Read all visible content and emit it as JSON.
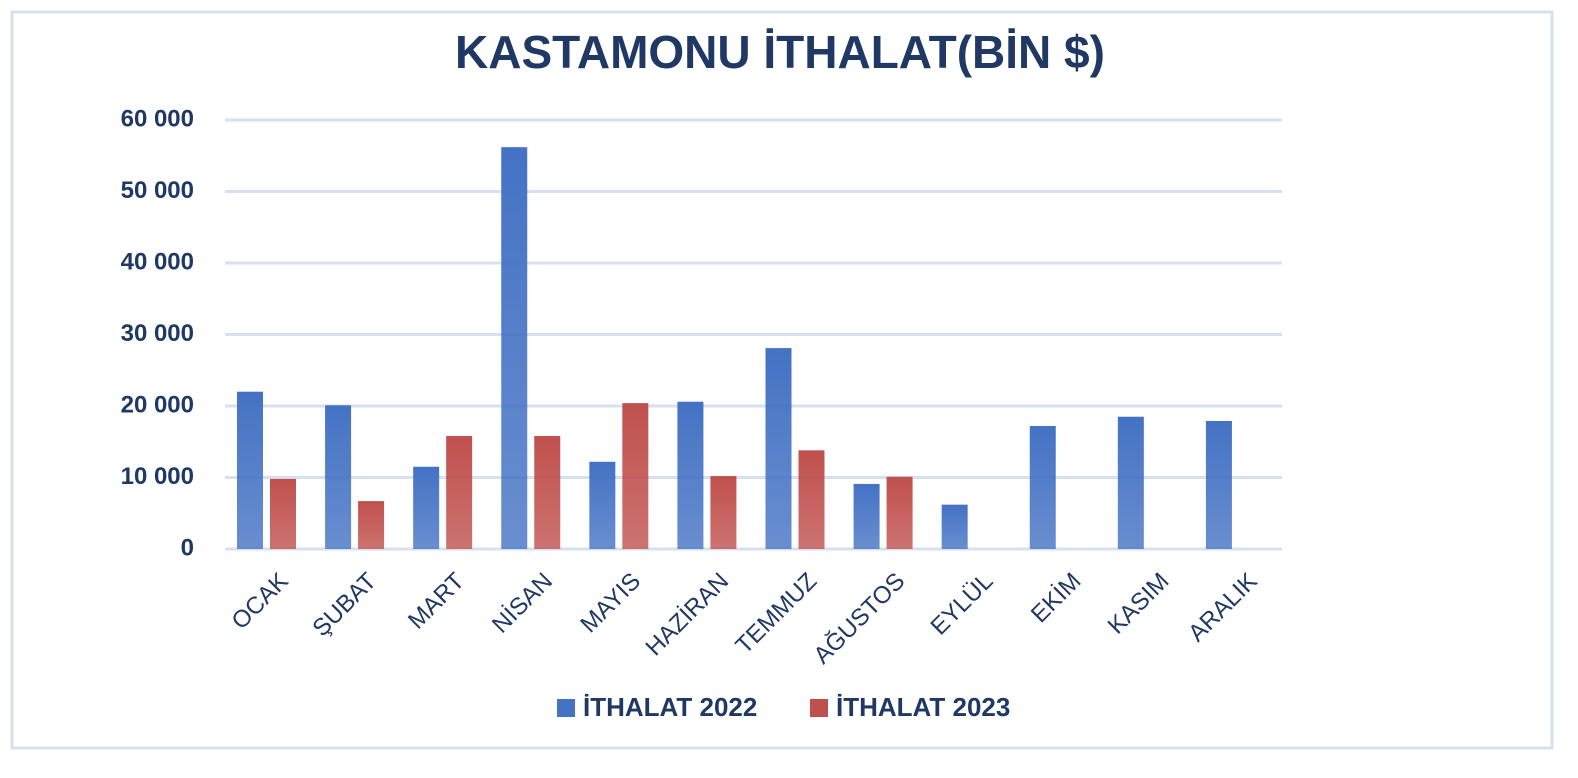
{
  "chart_data": {
    "type": "bar",
    "title": "KASTAMONU İTHALAT(BİN $)",
    "categories": [
      "OCAK",
      "ŞUBAT",
      "MART",
      "NİSAN",
      "MAYIS",
      "HAZİRAN",
      "TEMMUZ",
      "AĞUSTOS",
      "EYLÜL",
      "EKİM",
      "KASIM",
      "ARALIK"
    ],
    "series": [
      {
        "name": "İTHALAT 2022",
        "color": "#4472c4",
        "values": [
          22000,
          20100,
          11500,
          56200,
          12200,
          20600,
          28100,
          9100,
          6200,
          17200,
          18500,
          17900
        ]
      },
      {
        "name": "İTHALAT 2023",
        "color": "#c0504d",
        "values": [
          9800,
          6700,
          15800,
          15800,
          20400,
          10200,
          13800,
          10100,
          null,
          null,
          null,
          null
        ]
      }
    ],
    "ylim": [
      0,
      60000
    ],
    "yticks": [
      {
        "value": 0,
        "label": "0"
      },
      {
        "value": 10000,
        "label": "10 000"
      },
      {
        "value": 20000,
        "label": "20 000"
      },
      {
        "value": 30000,
        "label": "30 000"
      },
      {
        "value": 40000,
        "label": "40 000"
      },
      {
        "value": 50000,
        "label": "50 000"
      },
      {
        "value": 60000,
        "label": "60 000"
      }
    ],
    "grid": true,
    "legend": "bottom"
  }
}
